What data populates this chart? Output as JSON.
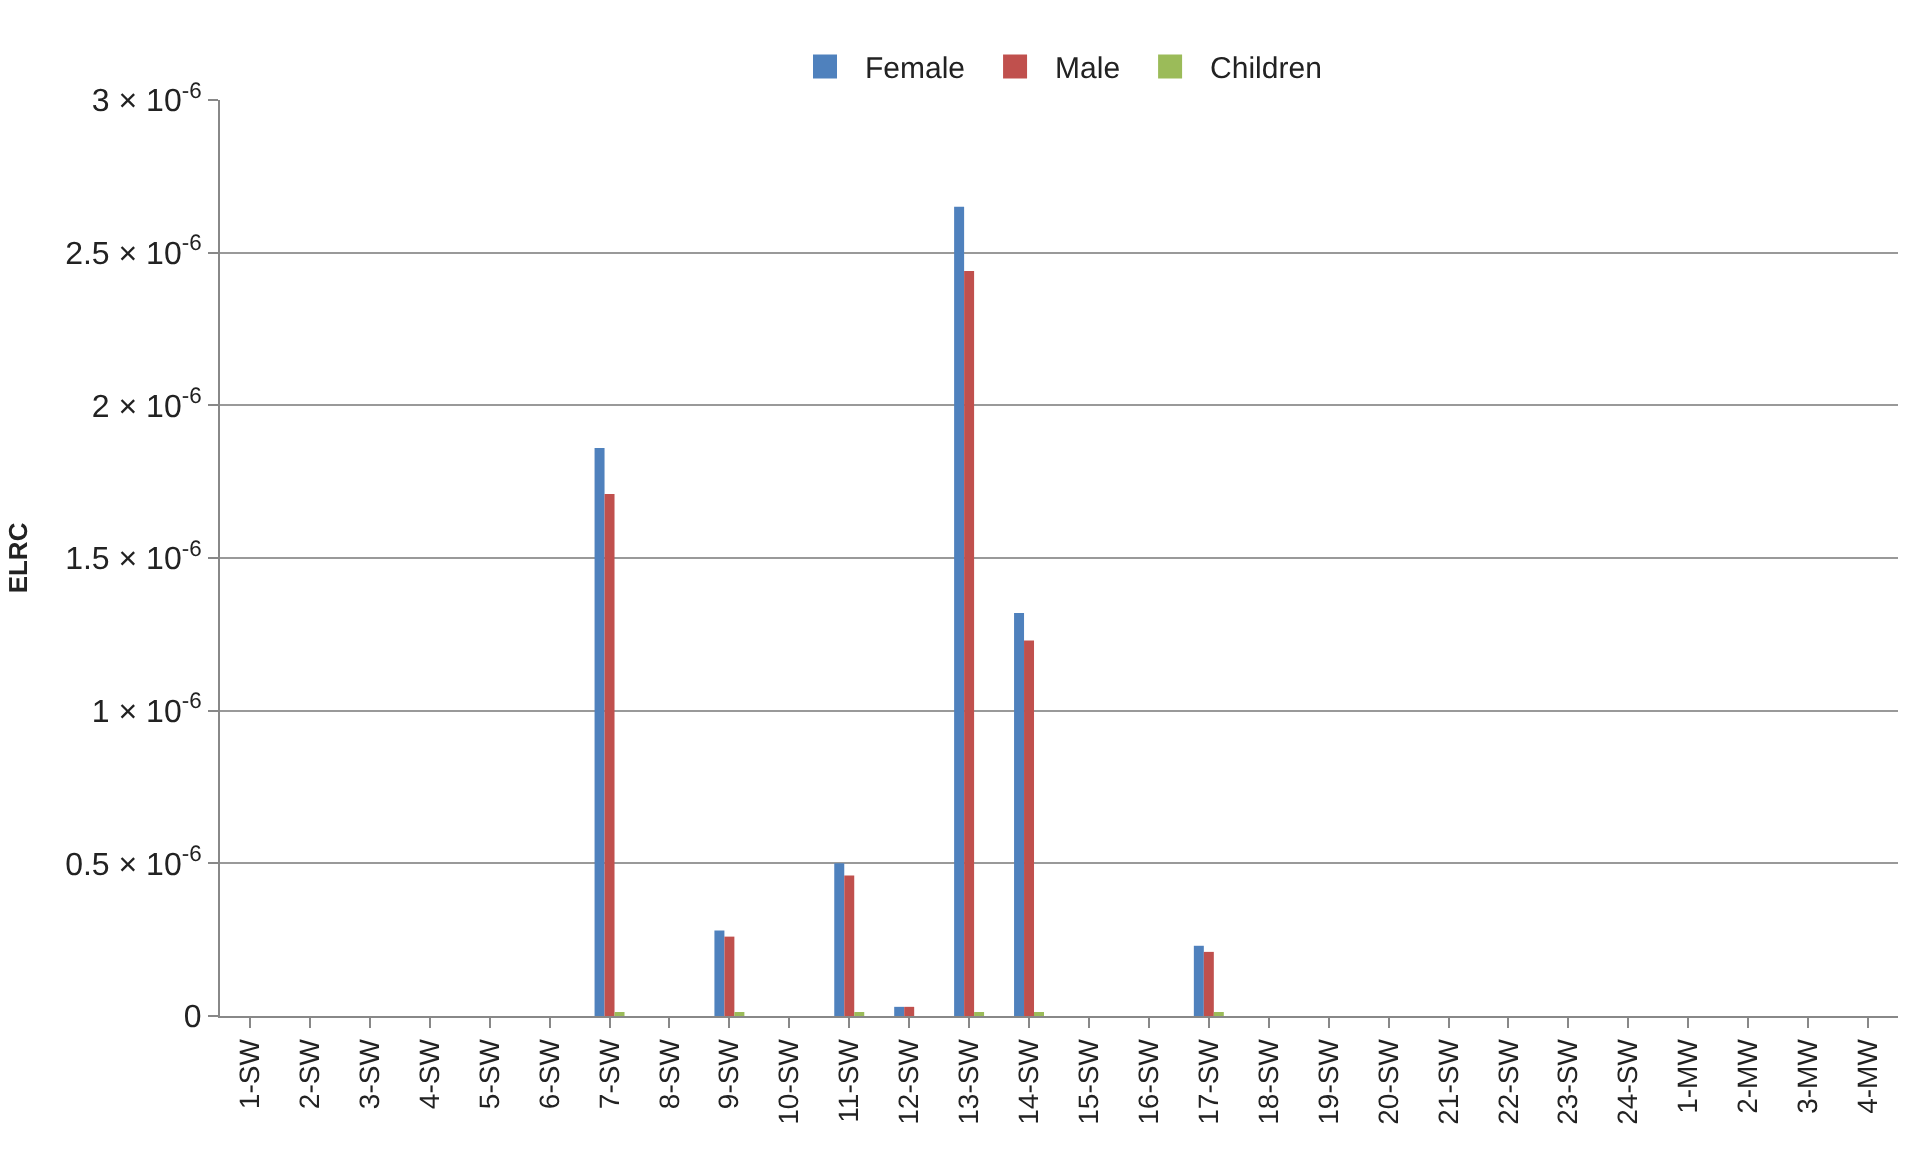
{
  "chart_data": {
    "type": "bar",
    "ylabel": "ELRC",
    "categories": [
      "1-SW",
      "2-SW",
      "3-SW",
      "4-SW",
      "5-SW",
      "6-SW",
      "7-SW",
      "8-SW",
      "9-SW",
      "10-SW",
      "11-SW",
      "12-SW",
      "13-SW",
      "14-SW",
      "15-SW",
      "16-SW",
      "17-SW",
      "18-SW",
      "19-SW",
      "20-SW",
      "21-SW",
      "22-SW",
      "23-SW",
      "24-SW",
      "1-MW",
      "2-MW",
      "3-MW",
      "4-MW"
    ],
    "series": [
      {
        "name": "Female",
        "color": "#4f81bd",
        "values": [
          0,
          0,
          0,
          0,
          0,
          0,
          1.86e-06,
          0,
          2.8e-07,
          0,
          5e-07,
          3e-08,
          2.65e-06,
          1.32e-06,
          0,
          0,
          2.3e-07,
          0,
          0,
          0,
          0,
          0,
          0,
          0,
          0,
          0,
          0,
          0
        ]
      },
      {
        "name": "Male",
        "color": "#c0504d",
        "values": [
          0,
          0,
          0,
          0,
          0,
          0,
          1.71e-06,
          0,
          2.6e-07,
          0,
          4.6e-07,
          3e-08,
          2.44e-06,
          1.23e-06,
          0,
          0,
          2.1e-07,
          0,
          0,
          0,
          0,
          0,
          0,
          0,
          0,
          0,
          0,
          0
        ]
      },
      {
        "name": "Children",
        "color": "#9bbb59",
        "values": [
          0,
          0,
          0,
          0,
          0,
          0,
          1e-08,
          0,
          1e-08,
          0,
          1e-08,
          0,
          1e-08,
          1e-08,
          0,
          0,
          1e-08,
          0,
          0,
          0,
          0,
          0,
          0,
          0,
          0,
          0,
          0,
          0
        ]
      }
    ],
    "ylim": [
      0,
      3e-06
    ],
    "yticks": [
      {
        "value": 0,
        "label": "0"
      },
      {
        "value": 5e-07,
        "label": "0.5 × 10$^{-6}$"
      },
      {
        "value": 1e-06,
        "label": "1 × 10$^{-6}$"
      },
      {
        "value": 1.5e-06,
        "label": "1.5 × 10$^{-6}$"
      },
      {
        "value": 2e-06,
        "label": "2 × 10$^{-6}$"
      },
      {
        "value": 2.5e-06,
        "label": "2.5 × 10$^{-6}$"
      },
      {
        "value": 3e-06,
        "label": "3 × 10$^{-6}$"
      }
    ],
    "grid": "y",
    "legend": "top"
  }
}
